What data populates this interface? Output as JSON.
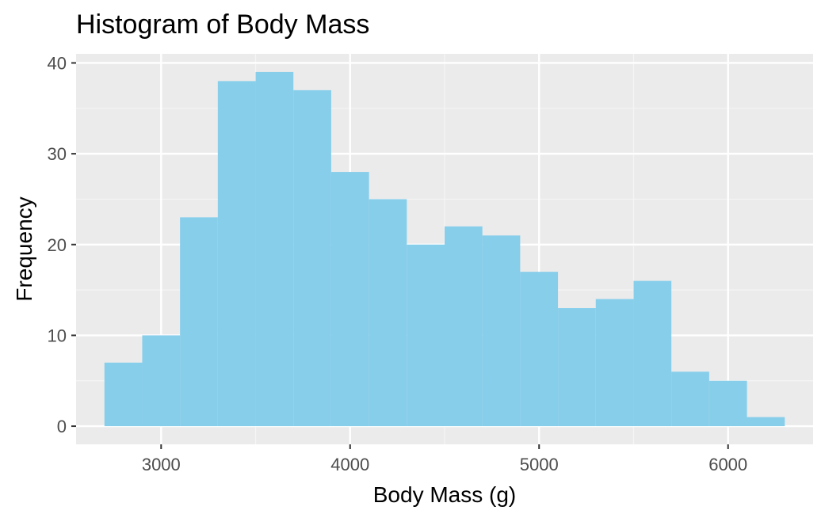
{
  "chart_data": {
    "type": "bar",
    "title": "Histogram of Body Mass",
    "xlabel": "Body Mass (g)",
    "ylabel": "Frequency",
    "xlim": [
      2550,
      6450
    ],
    "ylim": [
      -2,
      41
    ],
    "x_ticks": [
      3000,
      4000,
      5000,
      6000
    ],
    "x_tick_labels": [
      "3000",
      "4000",
      "5000",
      "6000"
    ],
    "y_ticks": [
      0,
      10,
      20,
      30,
      40
    ],
    "y_tick_labels": [
      "0",
      "10",
      "20",
      "30",
      "40"
    ],
    "bin_width": 200,
    "bins": [
      {
        "start": 2700,
        "end": 2900,
        "count": 7
      },
      {
        "start": 2900,
        "end": 3100,
        "count": 10
      },
      {
        "start": 3100,
        "end": 3300,
        "count": 23
      },
      {
        "start": 3300,
        "end": 3500,
        "count": 38
      },
      {
        "start": 3500,
        "end": 3700,
        "count": 39
      },
      {
        "start": 3700,
        "end": 3900,
        "count": 37
      },
      {
        "start": 3900,
        "end": 4100,
        "count": 28
      },
      {
        "start": 4100,
        "end": 4300,
        "count": 25
      },
      {
        "start": 4300,
        "end": 4500,
        "count": 20
      },
      {
        "start": 4500,
        "end": 4700,
        "count": 22
      },
      {
        "start": 4700,
        "end": 4900,
        "count": 21
      },
      {
        "start": 4900,
        "end": 5100,
        "count": 17
      },
      {
        "start": 5100,
        "end": 5300,
        "count": 13
      },
      {
        "start": 5300,
        "end": 5500,
        "count": 14
      },
      {
        "start": 5500,
        "end": 5700,
        "count": 16
      },
      {
        "start": 5700,
        "end": 5900,
        "count": 6
      },
      {
        "start": 5900,
        "end": 6100,
        "count": 5
      },
      {
        "start": 6100,
        "end": 6300,
        "count": 1
      }
    ],
    "grid": true,
    "colors": {
      "bar_fill": "#87CEEB",
      "panel_background": "#EBEBEB",
      "grid_major": "#FFFFFF",
      "grid_minor": "#F5F5F5",
      "tick_label": "#4D4D4D",
      "axis_title": "#000000"
    }
  }
}
